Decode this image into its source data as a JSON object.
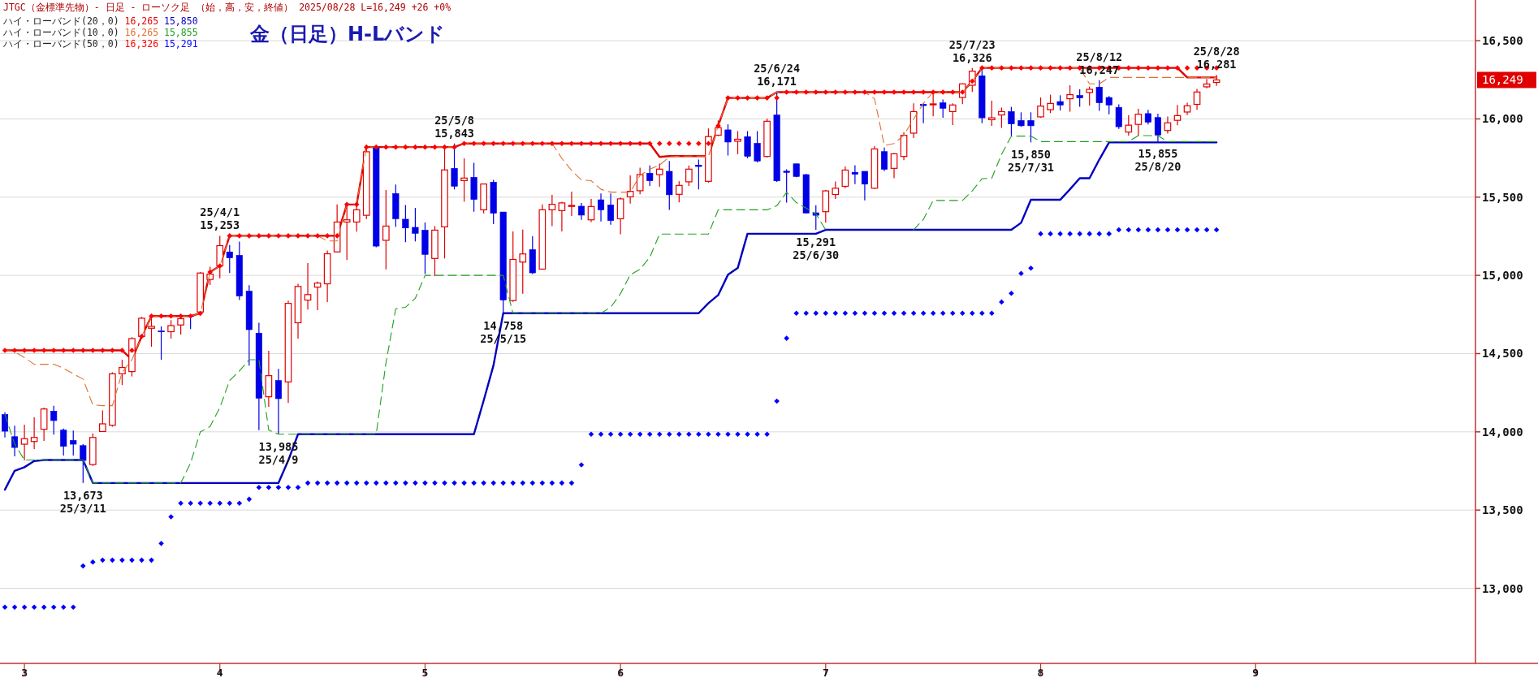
{
  "chart_data": {
    "type": "candlestick",
    "title": "金（日足）H-Lバンド",
    "subtitle": "JTGC（金標準先物）- 日足 - ローソク足 （始，高，安，終値） 2025/08/28 L=16,249 +26 +0%",
    "categories": [
      null,
      null,
      "3",
      null,
      null,
      null,
      null,
      null,
      null,
      null,
      null,
      null,
      null,
      null,
      null,
      null,
      null,
      null,
      null,
      null,
      null,
      null,
      "4",
      null,
      null,
      null,
      null,
      null,
      null,
      null,
      null,
      null,
      null,
      null,
      null,
      null,
      null,
      null,
      null,
      null,
      null,
      null,
      null,
      "5",
      null,
      null,
      null,
      null,
      null,
      null,
      null,
      null,
      null,
      null,
      null,
      null,
      null,
      null,
      null,
      null,
      null,
      null,
      null,
      "6",
      null,
      null,
      null,
      null,
      null,
      null,
      null,
      null,
      null,
      null,
      null,
      null,
      null,
      null,
      null,
      null,
      null,
      null,
      null,
      null,
      "7",
      null,
      null,
      null,
      null,
      null,
      null,
      null,
      null,
      null,
      null,
      null,
      null,
      null,
      null,
      null,
      null,
      null,
      null,
      null,
      null,
      null,
      "8",
      null,
      null,
      null,
      null,
      null,
      null,
      null,
      null,
      null,
      null,
      null,
      null,
      null,
      null,
      null,
      null,
      null,
      null,
      null,
      null,
      null,
      "9",
      null,
      null,
      null,
      null,
      null,
      null,
      null,
      null,
      null,
      null,
      null,
      null,
      null,
      null,
      null,
      null,
      null,
      null,
      null,
      null,
      null,
      null
    ],
    "ohlc": [
      [
        14111,
        14125,
        13964,
        14004
      ],
      [
        13969,
        14039,
        13843,
        13900
      ],
      [
        13921,
        14046,
        13817,
        13956
      ],
      [
        13938,
        14094,
        13890,
        13964
      ],
      [
        14016,
        14155,
        13942,
        14146
      ],
      [
        14132,
        14167,
        13982,
        14072
      ],
      [
        14011,
        14021,
        13848,
        13907
      ],
      [
        13945,
        14008,
        13848,
        13921
      ],
      [
        13912,
        13921,
        13673,
        13817
      ],
      [
        13791,
        13990,
        13782,
        13964
      ],
      [
        14002,
        14137,
        13999,
        14051
      ],
      [
        14042,
        14380,
        14033,
        14371
      ],
      [
        14371,
        14461,
        14299,
        14411
      ],
      [
        14385,
        14605,
        14354,
        14596
      ],
      [
        14610,
        14735,
        14605,
        14726
      ],
      [
        14662,
        14740,
        14544,
        14674
      ],
      [
        14645,
        14674,
        14461,
        14643
      ],
      [
        14640,
        14714,
        14596,
        14679
      ],
      [
        14683,
        14743,
        14622,
        14723
      ],
      [
        14743,
        14752,
        14657,
        14740
      ],
      [
        14766,
        15021,
        14761,
        15015
      ],
      [
        14974,
        15055,
        14939,
        15008
      ],
      [
        15060,
        15253,
        14981,
        15190
      ],
      [
        15150,
        15194,
        15015,
        15112
      ],
      [
        15128,
        15216,
        14842,
        14868
      ],
      [
        14899,
        14937,
        14423,
        14653
      ],
      [
        14631,
        14697,
        14011,
        14215
      ],
      [
        14224,
        14518,
        14160,
        14359
      ],
      [
        14328,
        14402,
        13985,
        14212
      ],
      [
        14319,
        14839,
        14184,
        14821
      ],
      [
        14697,
        14946,
        14596,
        14929
      ],
      [
        14842,
        15078,
        14782,
        14877
      ],
      [
        14925,
        14960,
        14778,
        14951
      ],
      [
        14946,
        15159,
        14830,
        15138
      ],
      [
        15150,
        15453,
        15147,
        15341
      ],
      [
        15341,
        15453,
        15098,
        15355
      ],
      [
        15341,
        15453,
        15280,
        15419
      ],
      [
        15384,
        15830,
        15360,
        15790
      ],
      [
        15821,
        15830,
        15180,
        15187
      ],
      [
        15224,
        15546,
        15038,
        15315
      ],
      [
        15523,
        15580,
        15310,
        15362
      ],
      [
        15359,
        15449,
        15212,
        15303
      ],
      [
        15307,
        15431,
        15217,
        15269
      ],
      [
        15289,
        15338,
        15009,
        15134
      ],
      [
        15108,
        15315,
        14995,
        15289
      ],
      [
        15310,
        15818,
        15108,
        15674
      ],
      [
        15684,
        15843,
        15549,
        15570
      ],
      [
        15606,
        15748,
        15471,
        15622
      ],
      [
        15627,
        15719,
        15407,
        15485
      ],
      [
        15419,
        15587,
        15397,
        15584
      ],
      [
        15596,
        15610,
        15328,
        15397
      ],
      [
        15405,
        15405,
        14758,
        14843
      ],
      [
        14839,
        15281,
        14831,
        15102
      ],
      [
        15085,
        15293,
        14883,
        15137
      ],
      [
        15165,
        15250,
        15009,
        15016
      ],
      [
        15040,
        15454,
        15040,
        15419
      ],
      [
        15419,
        15515,
        15315,
        15454
      ],
      [
        15414,
        15471,
        15281,
        15463
      ],
      [
        15445,
        15535,
        15379,
        15447
      ],
      [
        15442,
        15463,
        15355,
        15385
      ],
      [
        15355,
        15489,
        15341,
        15440
      ],
      [
        15483,
        15523,
        15345,
        15419
      ],
      [
        15450,
        15523,
        15324,
        15350
      ],
      [
        15362,
        15497,
        15263,
        15489
      ],
      [
        15502,
        15639,
        15459,
        15537
      ],
      [
        15541,
        15688,
        15518,
        15644
      ],
      [
        15653,
        15702,
        15572,
        15605
      ],
      [
        15644,
        15714,
        15567,
        15679
      ],
      [
        15665,
        15731,
        15419,
        15515
      ],
      [
        15518,
        15601,
        15466,
        15575
      ],
      [
        15598,
        15702,
        15572,
        15679
      ],
      [
        15705,
        15740,
        15549,
        15696
      ],
      [
        15601,
        15939,
        15592,
        15887
      ],
      [
        15896,
        15990,
        15890,
        15944
      ],
      [
        15930,
        15965,
        15766,
        15852
      ],
      [
        15857,
        15922,
        15774,
        15870
      ],
      [
        15887,
        15922,
        15748,
        15761
      ],
      [
        15844,
        15922,
        15722,
        15731
      ],
      [
        15760,
        16002,
        15753,
        15985
      ],
      [
        16025,
        16171,
        15597,
        15604
      ],
      [
        15666,
        15678,
        15465,
        15658
      ],
      [
        15713,
        15713,
        15627,
        15632
      ],
      [
        15644,
        15649,
        15398,
        15398
      ],
      [
        15400,
        15448,
        15291,
        15384
      ],
      [
        15407,
        15545,
        15337,
        15540
      ],
      [
        15517,
        15600,
        15488,
        15557
      ],
      [
        15569,
        15696,
        15557,
        15673
      ],
      [
        15659,
        15704,
        15583,
        15646
      ],
      [
        15665,
        15665,
        15479,
        15583
      ],
      [
        15557,
        15826,
        15552,
        15808
      ],
      [
        15791,
        15817,
        15666,
        15678
      ],
      [
        15684,
        15782,
        15621,
        15777
      ],
      [
        15760,
        15916,
        15736,
        15895
      ],
      [
        15909,
        16099,
        15878,
        16047
      ],
      [
        16094,
        16099,
        15973,
        16085
      ],
      [
        16092,
        16163,
        16016,
        16096
      ],
      [
        16103,
        16124,
        16007,
        16068
      ],
      [
        16047,
        16099,
        15961,
        16089
      ],
      [
        16137,
        16227,
        16094,
        16224
      ],
      [
        16215,
        16326,
        16172,
        16305
      ],
      [
        16276,
        16311,
        15973,
        16007
      ],
      [
        15995,
        16117,
        15956,
        16007
      ],
      [
        16025,
        16072,
        15943,
        16047
      ],
      [
        16047,
        16077,
        15891,
        15968
      ],
      [
        15990,
        16042,
        15950,
        15956
      ],
      [
        15990,
        16042,
        15850,
        15956
      ],
      [
        16013,
        16137,
        16007,
        16082
      ],
      [
        16059,
        16155,
        16037,
        16099
      ],
      [
        16111,
        16151,
        16054,
        16089
      ],
      [
        16129,
        16215,
        16047,
        16155
      ],
      [
        16150,
        16189,
        16077,
        16134
      ],
      [
        16169,
        16207,
        16085,
        16189
      ],
      [
        16203,
        16247,
        16051,
        16103
      ],
      [
        16137,
        16146,
        16030,
        16089
      ],
      [
        16074,
        16093,
        15936,
        15950
      ],
      [
        15916,
        16025,
        15893,
        15960
      ],
      [
        15965,
        16064,
        15893,
        16030
      ],
      [
        16034,
        16058,
        15965,
        15979
      ],
      [
        16009,
        16034,
        15855,
        15897
      ],
      [
        15926,
        16015,
        15906,
        15975
      ],
      [
        15991,
        16089,
        15960,
        16021
      ],
      [
        16044,
        16103,
        16025,
        16084
      ],
      [
        16093,
        16192,
        16058,
        16172
      ],
      [
        16205,
        16255,
        16196,
        16223
      ],
      [
        16233,
        16281,
        16211,
        16249
      ],
      null,
      null,
      null,
      null,
      null,
      null,
      null,
      null,
      null,
      null,
      null,
      null,
      null,
      null,
      null,
      null,
      null,
      null,
      null,
      null,
      null,
      null,
      null,
      null,
      null,
      null
    ],
    "series": [
      {
        "type": "line",
        "line_style": "solid",
        "color": "#e00000",
        "values": [
          14521,
          14521,
          14521,
          14521,
          14521,
          14521,
          14521,
          14521,
          14521,
          14521,
          14521,
          14521,
          14521,
          14461,
          14610,
          14740,
          14740,
          14740,
          14740,
          14740,
          14757,
          15021,
          15060,
          15253,
          15253,
          15253,
          15253,
          15253,
          15253,
          15253,
          15253,
          15253,
          15253,
          15253,
          15253,
          15453,
          15453,
          15820,
          15820,
          15820,
          15820,
          15820,
          15820,
          15820,
          15820,
          15820,
          15820,
          15843,
          15843,
          15843,
          15843,
          15843,
          15843,
          15843,
          15843,
          15843,
          15843,
          15843,
          15843,
          15843,
          15843,
          15843,
          15843,
          15843,
          15843,
          15843,
          15843,
          15757,
          15762,
          15762,
          15762,
          15762,
          15762,
          15956,
          16134,
          16134,
          16134,
          16134,
          16134,
          16171,
          16171,
          16171,
          16171,
          16171,
          16171,
          16171,
          16171,
          16171,
          16171,
          16171,
          16171,
          16171,
          16171,
          16171,
          16171,
          16171,
          16171,
          16171,
          16171,
          16241,
          16326,
          16326,
          16326,
          16326,
          16326,
          16326,
          16326,
          16326,
          16326,
          16326,
          16326,
          16326,
          16326,
          16326,
          16326,
          16326,
          16326,
          16326,
          16326,
          16326,
          16326,
          16265,
          16265,
          16265,
          16265,
          null,
          null,
          null,
          null,
          null,
          null,
          null,
          null,
          null,
          null,
          null,
          null,
          null,
          null,
          null,
          null,
          null,
          null,
          null,
          null,
          null,
          null,
          null,
          null,
          null,
          null
        ]
      },
      {
        "type": "line",
        "line_style": "solid",
        "color": "#0000c0",
        "values": [
          13630,
          13751,
          13774,
          13813,
          13820,
          13820,
          13820,
          13820,
          13820,
          13673,
          13673,
          13673,
          13673,
          13673,
          13673,
          13673,
          13673,
          13673,
          13673,
          13673,
          13673,
          13673,
          13673,
          13673,
          13673,
          13673,
          13673,
          13673,
          13673,
          13817,
          13985,
          13985,
          13985,
          13985,
          13985,
          13985,
          13985,
          13985,
          13985,
          13985,
          13985,
          13985,
          13985,
          13985,
          13985,
          13985,
          13985,
          13985,
          13985,
          14200,
          14424,
          14758,
          14758,
          14758,
          14758,
          14758,
          14758,
          14758,
          14758,
          14758,
          14758,
          14758,
          14758,
          14758,
          14758,
          14758,
          14758,
          14758,
          14758,
          14758,
          14758,
          14758,
          14822,
          14874,
          15004,
          15047,
          15266,
          15266,
          15266,
          15266,
          15266,
          15266,
          15266,
          15266,
          15291,
          15291,
          15291,
          15291,
          15291,
          15291,
          15291,
          15291,
          15291,
          15291,
          15291,
          15291,
          15291,
          15291,
          15291,
          15291,
          15291,
          15291,
          15291,
          15291,
          15336,
          15483,
          15483,
          15483,
          15483,
          15550,
          15621,
          15621,
          15740,
          15850,
          15850,
          15850,
          15850,
          15850,
          15850,
          15850,
          15850,
          15850,
          15850,
          15850,
          15850,
          null,
          null,
          null,
          null,
          null,
          null,
          null,
          null,
          null,
          null,
          null,
          null,
          null,
          null,
          null,
          null,
          null,
          null,
          null,
          null,
          null,
          null,
          null,
          null,
          null,
          null
        ]
      },
      {
        "type": "line",
        "line_style": "dashed",
        "color": "#e07030",
        "values": [
          14524,
          14510,
          14475,
          14432,
          14432,
          14432,
          14406,
          14371,
          14337,
          14172,
          14167,
          14167,
          14380,
          14461,
          14610,
          14740,
          14740,
          14740,
          14740,
          14740,
          14757,
          15021,
          15060,
          15253,
          15253,
          15253,
          15253,
          15253,
          15253,
          15253,
          15253,
          15253,
          15253,
          15220,
          15220,
          15453,
          15453,
          15820,
          15820,
          15820,
          15820,
          15820,
          15820,
          15820,
          15820,
          15820,
          15820,
          15843,
          15843,
          15843,
          15843,
          15843,
          15843,
          15843,
          15843,
          15843,
          15843,
          15748,
          15670,
          15610,
          15605,
          15550,
          15532,
          15532,
          15532,
          15639,
          15679,
          15705,
          15757,
          15762,
          15762,
          15762,
          15762,
          15956,
          16134,
          16134,
          16134,
          16134,
          16134,
          16171,
          16171,
          16171,
          16171,
          16171,
          16171,
          16171,
          16171,
          16171,
          16171,
          16129,
          15830,
          15843,
          15895,
          16000,
          16099,
          16171,
          16171,
          16171,
          16171,
          16241,
          16326,
          16326,
          16326,
          16326,
          16326,
          16326,
          16326,
          16326,
          16326,
          16326,
          16326,
          16224,
          16224,
          16265,
          16265,
          16265,
          16265,
          16265,
          16265,
          16265,
          16265,
          16265,
          16265,
          16265,
          16265,
          null,
          null,
          null,
          null,
          null,
          null,
          null,
          null,
          null,
          null,
          null,
          null,
          null,
          null,
          null,
          null,
          null,
          null,
          null,
          null,
          null,
          null,
          null,
          null,
          null,
          null
        ]
      },
      {
        "type": "line",
        "line_style": "dashed",
        "color": "#20a020",
        "values": [
          14111,
          13922,
          13820,
          13820,
          13820,
          13820,
          13820,
          13820,
          13820,
          13673,
          13673,
          13673,
          13673,
          13673,
          13673,
          13673,
          13673,
          13673,
          13673,
          13800,
          13999,
          14034,
          14155,
          14328,
          14389,
          14461,
          14461,
          14011,
          13985,
          13985,
          13985,
          13985,
          13985,
          13985,
          13985,
          13985,
          13985,
          13985,
          13985,
          14441,
          14787,
          14796,
          14853,
          15000,
          15000,
          15000,
          15000,
          15000,
          15000,
          15000,
          15000,
          15000,
          14758,
          14758,
          14758,
          14758,
          14758,
          14758,
          14758,
          14758,
          14758,
          14758,
          14796,
          14883,
          15004,
          15039,
          15116,
          15264,
          15264,
          15264,
          15264,
          15264,
          15264,
          15419,
          15419,
          15419,
          15419,
          15419,
          15419,
          15445,
          15531,
          15465,
          15430,
          15393,
          15291,
          null,
          null,
          null,
          null,
          null,
          null,
          null,
          null,
          15291,
          15358,
          15479,
          15479,
          15479,
          15479,
          15540,
          15618,
          15621,
          15774,
          15890,
          15890,
          15890,
          15855,
          15855,
          15855,
          15855,
          15855,
          15855,
          15855,
          15855,
          15855,
          15855,
          15893,
          15893,
          15893,
          15855,
          15855,
          15855,
          15855,
          15855,
          15855,
          null,
          null,
          null,
          null,
          null,
          null,
          null,
          null,
          null,
          null,
          null,
          null,
          null,
          null,
          null,
          null,
          null,
          null,
          null,
          null,
          null,
          null,
          null,
          null,
          null,
          null
        ]
      },
      {
        "type": "scatter",
        "marker": "diamond",
        "color": "#ff0000",
        "values": [
          14521,
          14521,
          14521,
          14521,
          14521,
          14521,
          14521,
          14521,
          14521,
          14521,
          14521,
          14521,
          14521,
          14521,
          14610,
          14740,
          14740,
          14740,
          14740,
          14740,
          14757,
          15021,
          15060,
          15253,
          15253,
          15253,
          15253,
          15253,
          15253,
          15253,
          15253,
          15253,
          15253,
          15253,
          15253,
          15453,
          15453,
          15820,
          15820,
          15820,
          15820,
          15820,
          15820,
          15820,
          15820,
          15820,
          15820,
          15843,
          15843,
          15843,
          15843,
          15843,
          15843,
          15843,
          15843,
          15843,
          15843,
          15843,
          15843,
          15843,
          15843,
          15843,
          15843,
          15843,
          15843,
          15843,
          15843,
          15843,
          15843,
          15843,
          15843,
          15843,
          15843,
          15956,
          16134,
          16134,
          16134,
          16134,
          16134,
          16134,
          16171,
          16171,
          16171,
          16171,
          16171,
          16171,
          16171,
          16171,
          16171,
          16171,
          16171,
          16171,
          16171,
          16171,
          16171,
          16171,
          16171,
          16171,
          16171,
          16241,
          16326,
          16326,
          16326,
          16326,
          16326,
          16326,
          16326,
          16326,
          16326,
          16326,
          16326,
          16326,
          16326,
          16326,
          16326,
          16326,
          16326,
          16326,
          16326,
          16326,
          16326,
          16326,
          16326,
          16326,
          16326,
          null,
          null,
          null,
          null,
          null,
          null,
          null,
          null,
          null,
          null,
          null,
          null,
          null,
          null,
          null,
          null,
          null,
          null,
          null,
          null,
          null,
          null,
          null,
          null,
          null,
          null
        ]
      },
      {
        "type": "scatter",
        "marker": "diamond",
        "color": "#0000ff",
        "values": [
          12879,
          12879,
          12879,
          12879,
          12879,
          12879,
          12879,
          12879,
          13143,
          13168,
          13180,
          13180,
          13180,
          13180,
          13180,
          13180,
          13287,
          13457,
          13544,
          13544,
          13544,
          13544,
          13544,
          13544,
          13544,
          13569,
          13645,
          13645,
          13645,
          13645,
          13645,
          13673,
          13673,
          13673,
          13673,
          13673,
          13673,
          13673,
          13673,
          13673,
          13673,
          13673,
          13673,
          13673,
          13673,
          13673,
          13673,
          13673,
          13673,
          13673,
          13673,
          13673,
          13673,
          13673,
          13673,
          13673,
          13673,
          13673,
          13673,
          13789,
          13985,
          13985,
          13985,
          13985,
          13985,
          13985,
          13985,
          13985,
          13985,
          13985,
          13985,
          13985,
          13985,
          13985,
          13985,
          13985,
          13985,
          13985,
          13985,
          14196,
          14598,
          14758,
          14758,
          14758,
          14758,
          14758,
          14758,
          14758,
          14758,
          14758,
          14758,
          14758,
          14758,
          14758,
          14758,
          14758,
          14758,
          14758,
          14758,
          14758,
          14758,
          14758,
          14830,
          14885,
          15012,
          15046,
          15266,
          15266,
          15266,
          15266,
          15266,
          15266,
          15266,
          15266,
          15291,
          15291,
          15291,
          15291,
          15291,
          15291,
          15291,
          15291,
          15291,
          15291,
          15291,
          null,
          null,
          null,
          null,
          null,
          null,
          null,
          null,
          null,
          null,
          null,
          null,
          null,
          null,
          null,
          null,
          null,
          null,
          null,
          null,
          null,
          null,
          null,
          null,
          null,
          null
        ]
      }
    ],
    "ylim": [
      12520,
      16760
    ],
    "yticks": [
      {
        "value": 13000,
        "label": "13,000"
      },
      {
        "value": 13500,
        "label": "13,500"
      },
      {
        "value": 14000,
        "label": "14,000"
      },
      {
        "value": 14500,
        "label": "14,500"
      },
      {
        "value": 15000,
        "label": "15,000"
      },
      {
        "value": 15500,
        "label": "15,500"
      },
      {
        "value": 16000,
        "label": "16,000"
      },
      {
        "value": 16500,
        "label": "16,500"
      }
    ],
    "grid": "y",
    "annotations": [
      "ハイ・ローバンド(20，0) 16,265 15,850",
      "ハイ・ローバンド(10，0) 16,265 15,855",
      "ハイ・ローバンド(50，0) 16,326 15,291",
      "16,249",
      {
        "text": "13,673\n25/3/11",
        "y": 13673
      },
      {
        "text": "25/4/1\n15,253",
        "y": 15253
      },
      {
        "text": "13,985\n25/4/9",
        "y": 13985
      },
      {
        "text": "25/5/8\n15,843",
        "y": 15843
      },
      {
        "text": "14,758\n25/5/15",
        "y": 14758
      },
      {
        "text": "25/6/24\n16,171",
        "y": 16171
      },
      {
        "text": "15,291\n25/6/30",
        "y": 15291
      },
      {
        "text": "25/7/23\n16,326",
        "y": 16326
      },
      {
        "text": "15,850\n25/7/31",
        "y": 15850
      },
      {
        "text": "25/8/12\n16,247",
        "y": 16247
      },
      {
        "text": "15,855\n25/8/20",
        "y": 15855
      },
      {
        "text": "25/8/28\n16,281",
        "y": 16281
      }
    ]
  }
}
